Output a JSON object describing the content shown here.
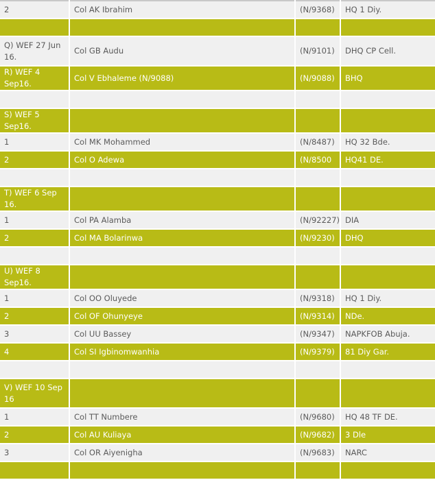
{
  "rows": [
    {
      "no": "2",
      "name": "Col AK Ibrahim",
      "num": "(N/9368)",
      "unit": "HQ 1 Diy."
    },
    {
      "no": "",
      "name": "",
      "num": "",
      "unit": ""
    },
    {
      "no": "Q) WEF 27 Jun 16.",
      "name": "Col GB Audu",
      "num": "(N/9101)",
      "unit": "DHQ CP Cell."
    },
    {
      "no": "R) WEF 4 Sep16.",
      "name": "Col V Ebhaleme (N/9088)",
      "num": "(N/9088)",
      "unit": "BHQ"
    },
    {
      "no": "",
      "name": "",
      "num": "",
      "unit": ""
    },
    {
      "no": "S) WEF 5 Sep16.",
      "name": "",
      "num": "",
      "unit": ""
    },
    {
      "no": "1",
      "name": "Col MK Mohammed",
      "num": "(N/8487)",
      "unit": "HQ 32 Bde."
    },
    {
      "no": "2",
      "name": "Col O Adewa",
      "num": "(N/8500",
      "unit": "HQ41 DE."
    },
    {
      "no": "",
      "name": "",
      "num": "",
      "unit": ""
    },
    {
      "no": "T) WEF 6 Sep 16.",
      "name": "",
      "num": "",
      "unit": ""
    },
    {
      "no": "1",
      "name": "Col PA Alamba",
      "num": "(N/92227)",
      "unit": "DIA"
    },
    {
      "no": "2",
      "name": "Col MA Bolarinwa",
      "num": "(N/9230)",
      "unit": "DHQ"
    },
    {
      "no": "",
      "name": "",
      "num": "",
      "unit": ""
    },
    {
      "no": "U) WEF 8 Sep16.",
      "name": "",
      "num": "",
      "unit": ""
    },
    {
      "no": "1",
      "name": "Col OO Oluyede",
      "num": "(N/9318)",
      "unit": "HQ 1 Diy."
    },
    {
      "no": "2",
      "name": "Col OF Ohunyeye",
      "num": "(N/9314)",
      "unit": "NDe."
    },
    {
      "no": "3",
      "name": "Col UU Bassey",
      "num": "(N/9347)",
      "unit": "NAPKFOB Abuja."
    },
    {
      "no": "4",
      "name": "Col SI Igbinomwanhia",
      "num": "(N/9379)",
      "unit": "81 Diy Gar."
    },
    {
      "no": "",
      "name": "",
      "num": "",
      "unit": ""
    },
    {
      "no": "V) WEF 10 Sep 16",
      "name": "",
      "num": "",
      "unit": ""
    },
    {
      "no": "1",
      "name": "Col TT Numbere",
      "num": "(N/9680)",
      "unit": "HQ 48 TF DE."
    },
    {
      "no": "2",
      "name": "Col AU Kuliaya",
      "num": "(N/9682)",
      "unit": "3 Dle"
    },
    {
      "no": "3",
      "name": "Col OR Aiyenigha",
      "num": "(N/9683)",
      "unit": "NARC"
    },
    {
      "no": "",
      "name": "",
      "num": "",
      "unit": ""
    }
  ],
  "colors": {
    "highlight": "#b8bb16",
    "row_light": "#f0f0f0"
  }
}
